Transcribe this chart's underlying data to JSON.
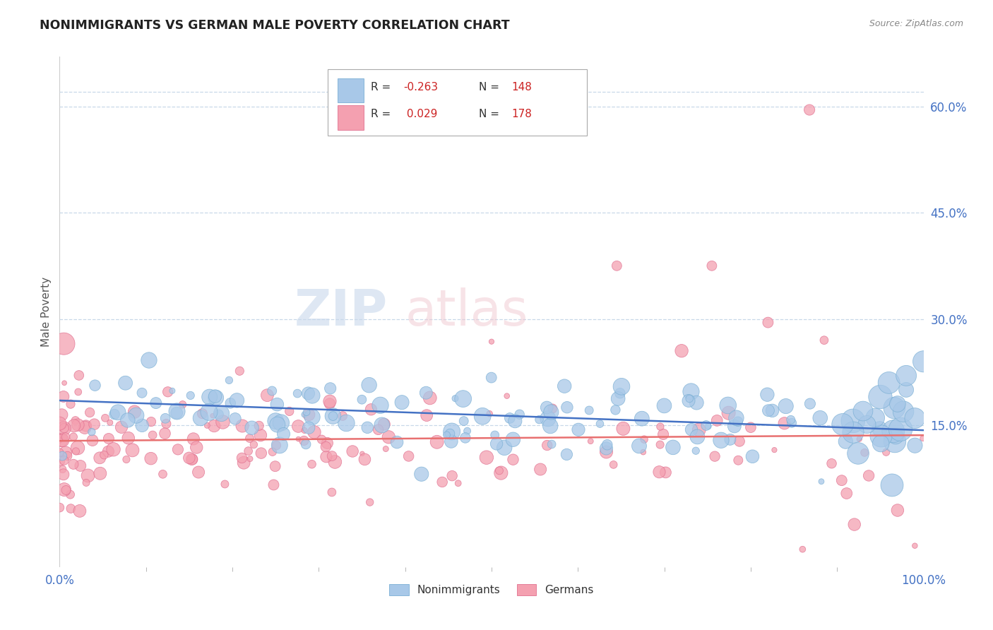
{
  "title": "NONIMMIGRANTS VS GERMAN MALE POVERTY CORRELATION CHART",
  "source": "Source: ZipAtlas.com",
  "ylabel": "Male Poverty",
  "y_tick_values": [
    0.15,
    0.3,
    0.45,
    0.6
  ],
  "y_tick_labels": [
    "15.0%",
    "30.0%",
    "45.0%",
    "60.0%"
  ],
  "x_tick_labels": [
    "0.0%",
    "100.0%"
  ],
  "x_min": 0.0,
  "x_max": 1.0,
  "y_min": -0.05,
  "y_max": 0.67,
  "legend_r1": "R = -0.263",
  "legend_n1": "N = 148",
  "legend_r2": "R =  0.029",
  "legend_n2": "N = 178",
  "legend_labels": [
    "Nonimmigrants",
    "Germans"
  ],
  "color_blue_scatter": "#a8c8e8",
  "color_pink_scatter": "#f4a0b0",
  "color_blue_line": "#4472c4",
  "color_pink_line": "#e87070",
  "color_blue_edge": "#7aafd4",
  "color_pink_edge": "#e07090",
  "grid_color": "#c8d8e8",
  "tick_color": "#4472c4",
  "ylabel_color": "#555555",
  "title_color": "#222222",
  "source_color": "#888888",
  "watermark_color": "#d8e4f0",
  "watermark_color2": "#f0d8e0",
  "background_color": "#ffffff",
  "blue_line_intercept": 0.185,
  "blue_line_slope": -0.042,
  "pink_line_intercept": 0.128,
  "pink_line_slope": 0.008
}
